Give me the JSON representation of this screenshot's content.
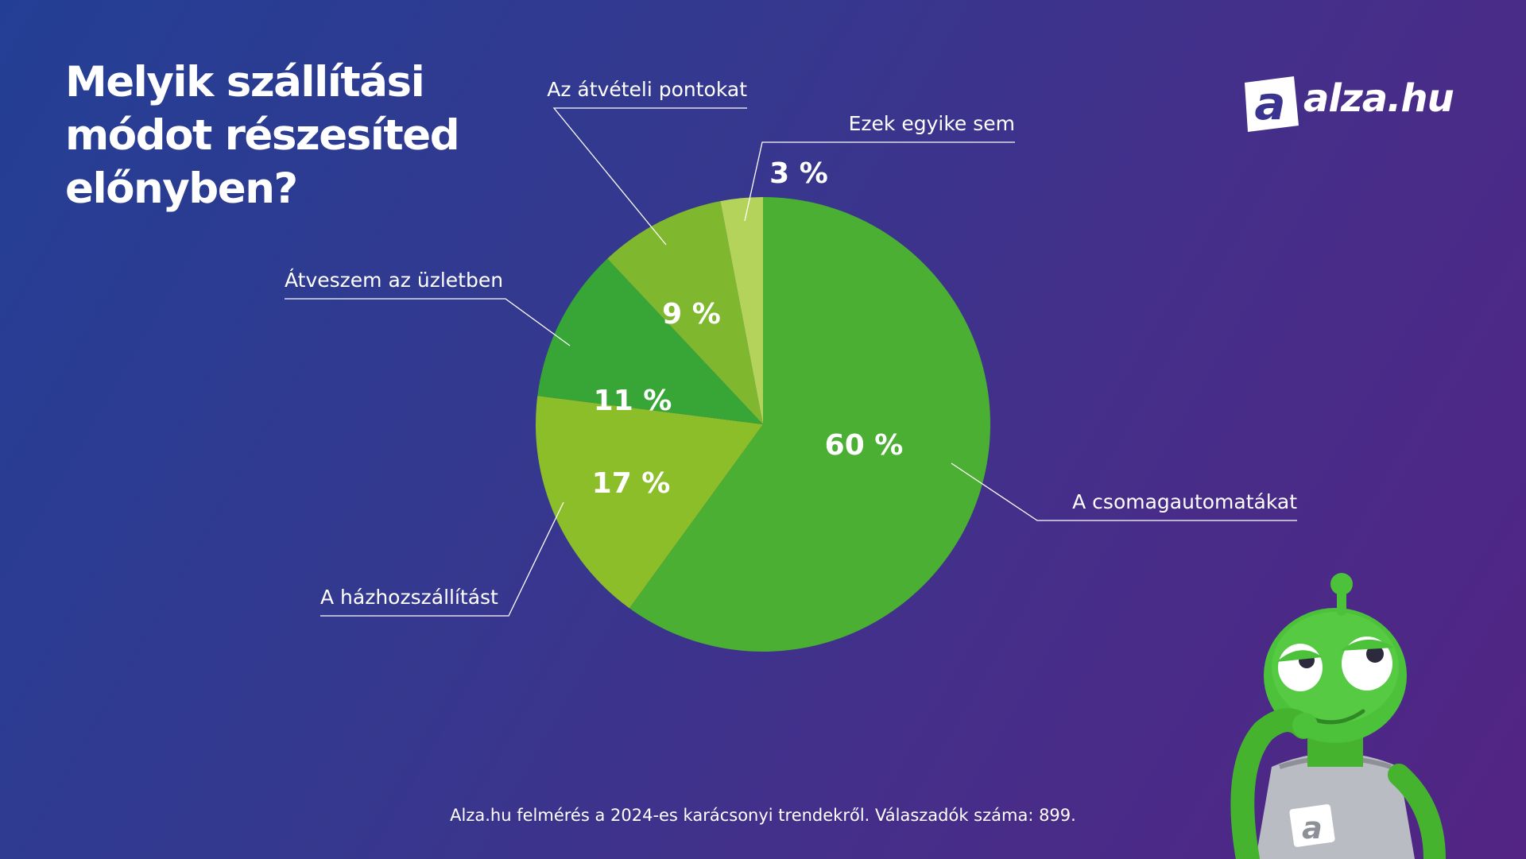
{
  "title": "Melyik szállítási módot részesíted előnyben?",
  "brand": {
    "logo_text": "alza.hu",
    "logo_letter": "a",
    "accent_color": "#4bb033"
  },
  "footnote": "Alza.hu felmérés a 2024-es karácsonyi trendekről. Válaszadók száma: 899.",
  "chart_data": {
    "type": "pie",
    "title": "Melyik szállítási módot részesíted előnyben?",
    "slices": [
      {
        "label": "A csomagautomatákat",
        "value": 60,
        "value_label": "60 %",
        "color": "#4aaf32"
      },
      {
        "label": "A házhozszállítást",
        "value": 17,
        "value_label": "17 %",
        "color": "#8cbe2a"
      },
      {
        "label": "Átveszem az üzletben",
        "value": 11,
        "value_label": "11 %",
        "color": "#37a636"
      },
      {
        "label": "Az átvételi pontokat",
        "value": 9,
        "value_label": "9 %",
        "color": "#7fb82e"
      },
      {
        "label": "Ezek egyike sem",
        "value": 3,
        "value_label": "3 %",
        "color": "#b3d35a"
      }
    ],
    "start": "12 o'clock",
    "direction": "clockwise",
    "legend": "none (direct labels with leader lines)"
  }
}
